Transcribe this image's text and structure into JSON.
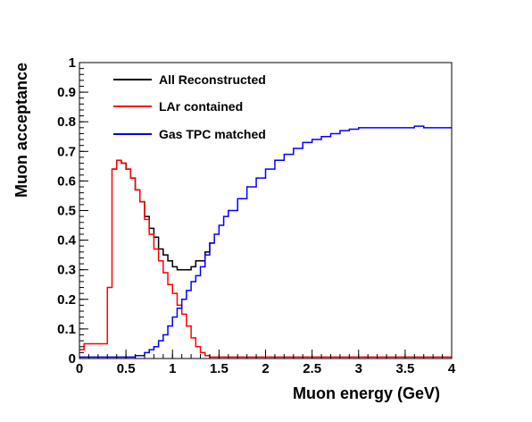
{
  "chart_data": {
    "type": "line",
    "xlabel": "Muon energy (GeV)",
    "ylabel": "Muon acceptance",
    "xlim": [
      0,
      4
    ],
    "ylim": [
      0,
      1
    ],
    "grid": false,
    "legend_position": "top-left",
    "x_ticks": [
      "0",
      "0.5",
      "1",
      "1.5",
      "2",
      "2.5",
      "3",
      "3.5",
      "4"
    ],
    "y_ticks": [
      "0",
      "0.1",
      "0.2",
      "0.3",
      "0.4",
      "0.5",
      "0.6",
      "0.7",
      "0.8",
      "0.9",
      "1"
    ],
    "bin_width": 0.05,
    "series": [
      {
        "name": "All Reconstructed",
        "color": "#000000",
        "x": [
          0.35,
          0.4,
          0.45,
          0.5,
          0.55,
          0.6,
          0.65,
          0.7,
          0.75,
          0.8,
          0.85,
          0.9,
          0.95,
          1.0,
          1.05,
          1.1,
          1.15,
          1.2,
          1.25,
          1.3,
          1.35,
          1.4
        ],
        "values": [
          0.64,
          0.67,
          0.66,
          0.64,
          0.61,
          0.57,
          0.53,
          0.48,
          0.44,
          0.41,
          0.37,
          0.35,
          0.33,
          0.31,
          0.3,
          0.3,
          0.3,
          0.31,
          0.33,
          0.33,
          0.36,
          0.39
        ]
      },
      {
        "name": "LAr contained",
        "color": "#ff0000",
        "x": [
          0.0,
          0.05,
          0.1,
          0.15,
          0.2,
          0.25,
          0.3,
          0.35,
          0.4,
          0.45,
          0.5,
          0.55,
          0.6,
          0.65,
          0.7,
          0.75,
          0.8,
          0.85,
          0.9,
          0.95,
          1.0,
          1.05,
          1.1,
          1.15,
          1.2,
          1.25,
          1.3,
          1.35,
          1.4,
          1.5,
          2.0,
          2.5,
          3.0,
          3.5,
          3.95
        ],
        "values": [
          0.03,
          0.05,
          0.05,
          0.05,
          0.05,
          0.05,
          0.24,
          0.64,
          0.67,
          0.66,
          0.64,
          0.61,
          0.57,
          0.53,
          0.47,
          0.42,
          0.37,
          0.33,
          0.29,
          0.25,
          0.22,
          0.18,
          0.15,
          0.11,
          0.07,
          0.04,
          0.02,
          0.01,
          0.005,
          0.005,
          0.005,
          0.005,
          0.005,
          0.005,
          0.005
        ]
      },
      {
        "name": "Gas TPC matched",
        "color": "#0000ff",
        "x": [
          0.0,
          0.3,
          0.55,
          0.6,
          0.65,
          0.7,
          0.75,
          0.8,
          0.85,
          0.9,
          0.95,
          1.0,
          1.05,
          1.1,
          1.15,
          1.2,
          1.25,
          1.3,
          1.35,
          1.4,
          1.45,
          1.5,
          1.55,
          1.6,
          1.7,
          1.8,
          1.9,
          2.0,
          2.1,
          2.2,
          2.3,
          2.4,
          2.5,
          2.6,
          2.7,
          2.8,
          2.9,
          3.0,
          3.1,
          3.2,
          3.3,
          3.4,
          3.5,
          3.6,
          3.7,
          3.8,
          3.95
        ],
        "values": [
          0.005,
          0.005,
          0.005,
          0.01,
          0.01,
          0.02,
          0.03,
          0.04,
          0.06,
          0.08,
          0.11,
          0.14,
          0.17,
          0.2,
          0.23,
          0.26,
          0.28,
          0.31,
          0.35,
          0.39,
          0.42,
          0.45,
          0.48,
          0.5,
          0.54,
          0.58,
          0.61,
          0.64,
          0.67,
          0.69,
          0.71,
          0.73,
          0.74,
          0.75,
          0.76,
          0.77,
          0.775,
          0.78,
          0.78,
          0.78,
          0.78,
          0.78,
          0.78,
          0.785,
          0.78,
          0.78,
          0.78
        ]
      }
    ]
  }
}
